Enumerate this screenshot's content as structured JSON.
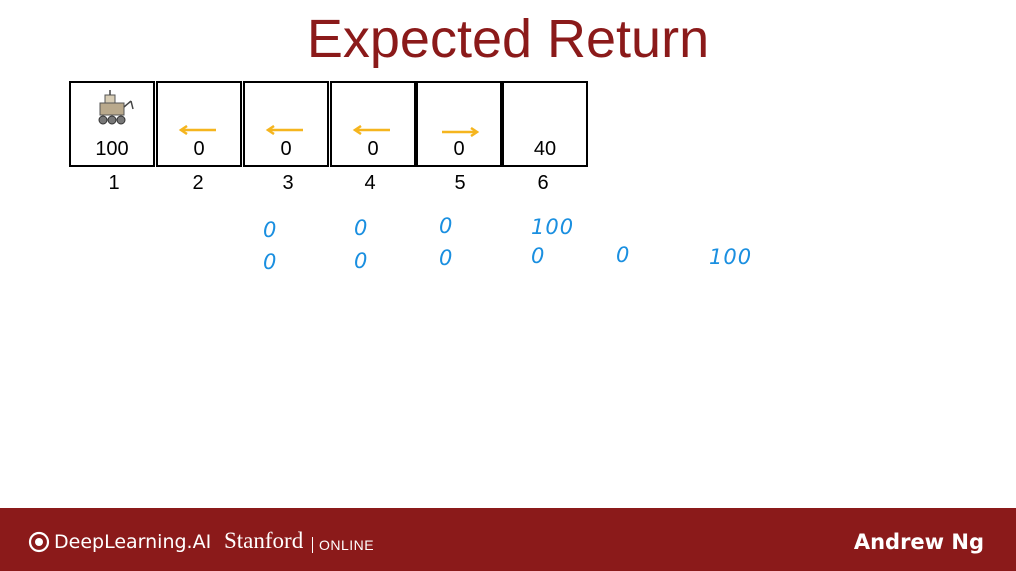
{
  "title": "Expected Return",
  "cells": [
    {
      "reward": "100",
      "state": "1",
      "arrow": "none",
      "has_rover": true
    },
    {
      "reward": "0",
      "state": "2",
      "arrow": "left",
      "has_rover": false
    },
    {
      "reward": "0",
      "state": "3",
      "arrow": "left",
      "has_rover": false
    },
    {
      "reward": "0",
      "state": "4",
      "arrow": "left",
      "has_rover": false
    },
    {
      "reward": "0",
      "state": "5",
      "arrow": "right",
      "has_rover": false
    },
    {
      "reward": "40",
      "state": "6",
      "arrow": "none",
      "has_rover": false
    }
  ],
  "handwriting": {
    "row1": [
      "0",
      "0",
      "0",
      "100"
    ],
    "row2": [
      "0",
      "0",
      "0",
      "0",
      "0",
      "100"
    ]
  },
  "footer": {
    "brand": "DeepLearning.AI",
    "stanford": "Stanford",
    "online": "ONLINE",
    "author": "Andrew Ng"
  },
  "colors": {
    "accent": "#8b1a1a",
    "arrow": "#f5b51e",
    "ink": "#1a8fe0"
  }
}
